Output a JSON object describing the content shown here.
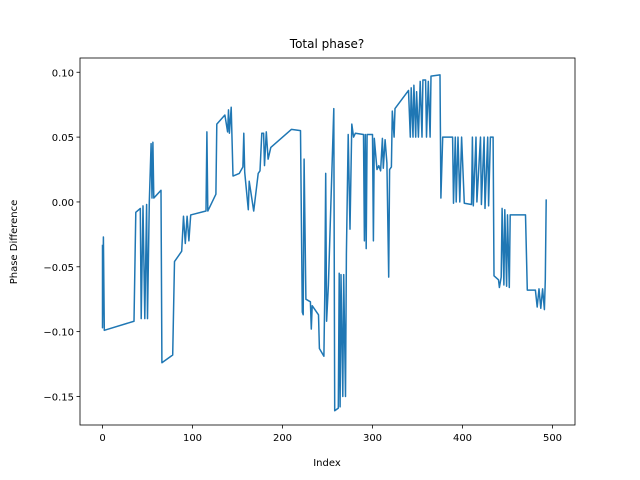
{
  "chart_data": {
    "type": "line",
    "title": "Total phase?",
    "xlabel": "Index",
    "ylabel": "Phase Difference",
    "color": "#1f77b4",
    "x": [
      0,
      0,
      1,
      2,
      35,
      37,
      42,
      43,
      45,
      47,
      49,
      50,
      52,
      54,
      55,
      56,
      57,
      65,
      66,
      78,
      80,
      88,
      90,
      92,
      94,
      96,
      98,
      115,
      116,
      117,
      126,
      127,
      136,
      139,
      140,
      141,
      143,
      145,
      152,
      156,
      157,
      158,
      162,
      163,
      168,
      173,
      175,
      177,
      179,
      180,
      182,
      184,
      187,
      210,
      220,
      222,
      223,
      224,
      226,
      231,
      232,
      233,
      240,
      241,
      246,
      247,
      248,
      249,
      251,
      257,
      258,
      262,
      263,
      264,
      265,
      267,
      268,
      270,
      271,
      273,
      275,
      277,
      279,
      281,
      290,
      291,
      292,
      293,
      294,
      300,
      301,
      302,
      305,
      307,
      309,
      311,
      312,
      314,
      316,
      318,
      319,
      321,
      322,
      324,
      325,
      340,
      342,
      343,
      345,
      346,
      348,
      349,
      351,
      353,
      355,
      356,
      359,
      360,
      362,
      364,
      365,
      375,
      376,
      378,
      389,
      390,
      392,
      393,
      395,
      397,
      399,
      402,
      410,
      411,
      412,
      415,
      416,
      420,
      421,
      424,
      425,
      428,
      429,
      431,
      434,
      435,
      440,
      441,
      443,
      444,
      446,
      447,
      449,
      450,
      452,
      453,
      470,
      472,
      481,
      483,
      485,
      487,
      489,
      491,
      492,
      493
    ],
    "values": [
      -0.033,
      -0.097,
      -0.027,
      -0.099,
      -0.092,
      -0.008,
      -0.005,
      -0.09,
      -0.003,
      -0.09,
      -0.002,
      -0.09,
      0.0,
      0.045,
      0.003,
      0.046,
      0.003,
      0.009,
      -0.124,
      -0.118,
      -0.046,
      -0.038,
      -0.011,
      -0.032,
      -0.011,
      -0.03,
      -0.01,
      -0.007,
      0.054,
      -0.007,
      0.006,
      0.06,
      0.067,
      0.054,
      0.071,
      0.053,
      0.073,
      0.02,
      0.022,
      0.027,
      0.053,
      0.023,
      -0.006,
      0.016,
      -0.007,
      0.022,
      0.024,
      0.053,
      0.053,
      0.028,
      0.054,
      0.033,
      0.042,
      0.056,
      0.055,
      -0.085,
      -0.087,
      0.033,
      -0.075,
      -0.077,
      -0.098,
      -0.08,
      -0.087,
      -0.113,
      -0.119,
      -0.07,
      0.022,
      -0.092,
      -0.064,
      0.072,
      -0.161,
      -0.159,
      -0.055,
      -0.158,
      -0.056,
      -0.15,
      -0.056,
      -0.15,
      -0.04,
      0.052,
      -0.021,
      0.06,
      0.05,
      0.053,
      0.052,
      -0.03,
      0.052,
      -0.036,
      0.052,
      0.052,
      -0.03,
      0.049,
      0.025,
      0.028,
      0.024,
      0.049,
      0.026,
      0.048,
      0.03,
      -0.058,
      0.025,
      0.027,
      0.07,
      0.05,
      0.072,
      0.086,
      0.05,
      0.088,
      0.05,
      0.09,
      0.05,
      0.085,
      0.05,
      0.093,
      0.05,
      0.094,
      0.094,
      0.05,
      0.093,
      0.05,
      0.097,
      0.098,
      0.003,
      0.05,
      0.05,
      -0.001,
      0.05,
      0.0,
      0.05,
      0.0,
      0.05,
      -0.001,
      -0.002,
      0.05,
      -0.003,
      0.05,
      0.0,
      0.05,
      -0.002,
      0.05,
      -0.005,
      0.05,
      -0.003,
      0.05,
      0.05,
      -0.057,
      -0.06,
      -0.066,
      -0.058,
      -0.005,
      -0.064,
      -0.006,
      -0.065,
      -0.01,
      -0.066,
      -0.01,
      -0.01,
      -0.068,
      -0.068,
      -0.081,
      -0.067,
      -0.082,
      -0.067,
      -0.083,
      -0.06,
      0.002
    ],
    "xlim": [
      -25,
      525
    ],
    "xticks": [
      0,
      100,
      200,
      300,
      400,
      500
    ],
    "ylim": [
      -0.172,
      0.111
    ],
    "yticks": [
      {
        "value": -0.15,
        "label": "−0.15"
      },
      {
        "value": -0.1,
        "label": "−0.10"
      },
      {
        "value": -0.05,
        "label": "−0.05"
      },
      {
        "value": 0,
        "label": "0.00"
      },
      {
        "value": 0.05,
        "label": "0.05"
      },
      {
        "value": 0.1,
        "label": "0.10"
      }
    ]
  }
}
